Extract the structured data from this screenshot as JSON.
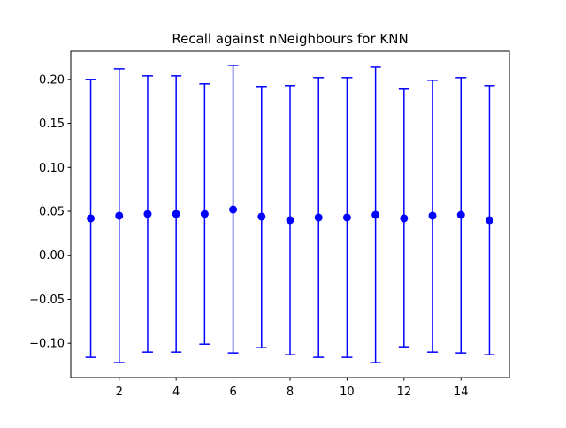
{
  "chart_data": {
    "type": "scatter",
    "title": "Recall against nNeighbours for KNN",
    "xlabel": "",
    "ylabel": "",
    "xlim": [
      0.3,
      15.7
    ],
    "ylim": [
      -0.139,
      0.232
    ],
    "x_ticks": [
      2,
      4,
      6,
      8,
      10,
      12,
      14
    ],
    "y_ticks": [
      -0.1,
      -0.05,
      0.0,
      0.05,
      0.1,
      0.15,
      0.2
    ],
    "y_tick_labels": [
      "−0.10",
      "−0.05",
      "0.00",
      "0.05",
      "0.10",
      "0.15",
      "0.20"
    ],
    "x_tick_labels": [
      "2",
      "4",
      "6",
      "8",
      "10",
      "12",
      "14"
    ],
    "grid": false,
    "series": [
      {
        "x": [
          1,
          2,
          3,
          4,
          5,
          6,
          7,
          8,
          9,
          10,
          11,
          12,
          13,
          14,
          15
        ],
        "y": [
          0.042,
          0.045,
          0.047,
          0.047,
          0.047,
          0.052,
          0.044,
          0.04,
          0.043,
          0.043,
          0.046,
          0.042,
          0.045,
          0.046,
          0.04
        ],
        "yerr_upper": [
          0.2,
          0.212,
          0.204,
          0.204,
          0.195,
          0.216,
          0.192,
          0.193,
          0.202,
          0.202,
          0.214,
          0.189,
          0.199,
          0.202,
          0.193
        ],
        "yerr_lower": [
          -0.116,
          -0.122,
          -0.11,
          -0.11,
          -0.101,
          -0.111,
          -0.105,
          -0.113,
          -0.116,
          -0.116,
          -0.122,
          -0.104,
          -0.11,
          -0.111,
          -0.113
        ],
        "color": "#0000ff"
      }
    ]
  }
}
